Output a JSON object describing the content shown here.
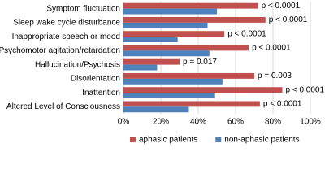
{
  "chart_data": {
    "type": "hbar",
    "categories": [
      "Symptom fluctuation",
      "Sleep wake cycle disturbance",
      "Inappropriate speech or mood",
      "Psychomotor agitation/retardation",
      "Hallucination/Psychosis",
      "Disorientation",
      "Inattention",
      "Altered Level of Consciousness"
    ],
    "series": [
      {
        "name": "aphasic patients",
        "color": "#c0504d",
        "values": [
          72,
          76,
          54,
          67,
          30,
          70,
          85,
          73
        ]
      },
      {
        "name": "non-aphasic patients",
        "color": "#4f81bd",
        "values": [
          50,
          45,
          29,
          46,
          18,
          53,
          49,
          35
        ]
      }
    ],
    "annotations": [
      "p < 0.0001",
      "p < 0.0001",
      "p < 0.0001",
      "p < 0.0001",
      "p = 0.017",
      "p = 0.003",
      "p < 0.0001",
      "p < 0.0001"
    ],
    "xlim": [
      0,
      100
    ],
    "xticks": [
      {
        "value": 0,
        "label": "0%"
      },
      {
        "value": 20,
        "label": "20%"
      },
      {
        "value": 40,
        "label": "40%"
      },
      {
        "value": 60,
        "label": "60%"
      },
      {
        "value": 80,
        "label": "80%"
      },
      {
        "value": 100,
        "label": "100%"
      }
    ],
    "grid": true,
    "legend": "bottom"
  }
}
